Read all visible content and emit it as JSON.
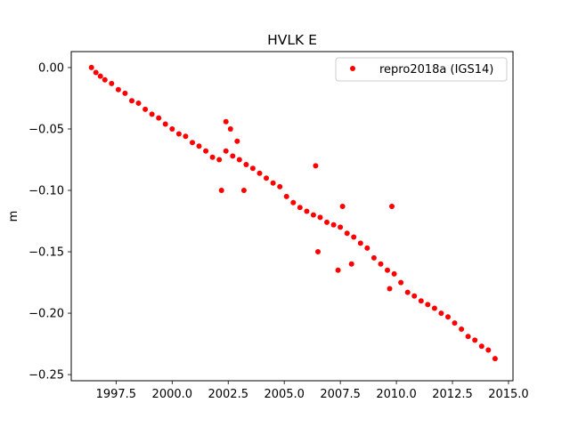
{
  "chart_data": {
    "type": "scatter",
    "title": "HVLK E",
    "xlabel": "",
    "ylabel": "m",
    "xlim": [
      1995.5,
      2015.2
    ],
    "ylim": [
      -0.255,
      0.013
    ],
    "xticks": [
      1997.5,
      2000.0,
      2002.5,
      2005.0,
      2007.5,
      2010.0,
      2012.5,
      2015.0
    ],
    "xtick_labels": [
      "1997.5",
      "2000.0",
      "2002.5",
      "2005.0",
      "2007.5",
      "2010.0",
      "2012.5",
      "2015.0"
    ],
    "yticks": [
      0.0,
      -0.05,
      -0.1,
      -0.15,
      -0.2,
      -0.25
    ],
    "ytick_labels": [
      "0.00",
      "−0.05",
      "−0.10",
      "−0.15",
      "−0.20",
      "−0.25"
    ],
    "grid": false,
    "legend_position": "top-right",
    "series": [
      {
        "name": "repro2018a (IGS14)",
        "color": "#ff0000",
        "marker": "circle",
        "x": [
          1996.4,
          1996.6,
          1996.8,
          1997.0,
          1997.3,
          1997.6,
          1997.9,
          1998.2,
          1998.5,
          1998.8,
          1999.1,
          1999.4,
          1999.7,
          2000.0,
          2000.3,
          2000.6,
          2000.9,
          2001.2,
          2001.5,
          2001.8,
          2002.1,
          2002.4,
          2002.7,
          2003.0,
          2003.3,
          2003.6,
          2003.9,
          2004.2,
          2004.5,
          2004.8,
          2005.1,
          2005.4,
          2005.7,
          2006.0,
          2006.3,
          2006.6,
          2006.9,
          2007.2,
          2007.5,
          2007.8,
          2008.1,
          2008.4,
          2008.7,
          2009.0,
          2009.3,
          2009.6,
          2009.9,
          2010.2,
          2010.5,
          2010.8,
          2011.1,
          2011.4,
          2011.7,
          2012.0,
          2012.3,
          2012.6,
          2012.9,
          2013.2,
          2013.5,
          2013.8,
          2014.1,
          2014.4,
          2002.4,
          2002.6,
          2002.9,
          2002.2,
          2006.4,
          2007.6,
          2009.8,
          2009.7,
          2008.0,
          2006.5,
          2003.2,
          2007.4
        ],
        "y": [
          0.0,
          -0.004,
          -0.007,
          -0.01,
          -0.013,
          -0.018,
          -0.021,
          -0.027,
          -0.029,
          -0.034,
          -0.038,
          -0.041,
          -0.046,
          -0.05,
          -0.054,
          -0.056,
          -0.061,
          -0.064,
          -0.068,
          -0.073,
          -0.075,
          -0.068,
          -0.072,
          -0.075,
          -0.079,
          -0.082,
          -0.086,
          -0.09,
          -0.094,
          -0.097,
          -0.105,
          -0.11,
          -0.114,
          -0.117,
          -0.12,
          -0.122,
          -0.126,
          -0.128,
          -0.13,
          -0.135,
          -0.138,
          -0.143,
          -0.147,
          -0.155,
          -0.16,
          -0.165,
          -0.168,
          -0.175,
          -0.183,
          -0.186,
          -0.19,
          -0.193,
          -0.196,
          -0.2,
          -0.203,
          -0.208,
          -0.213,
          -0.219,
          -0.222,
          -0.227,
          -0.23,
          -0.237,
          -0.044,
          -0.05,
          -0.06,
          -0.1,
          -0.08,
          -0.113,
          -0.113,
          -0.18,
          -0.16,
          -0.15,
          -0.1,
          -0.165
        ]
      }
    ]
  }
}
